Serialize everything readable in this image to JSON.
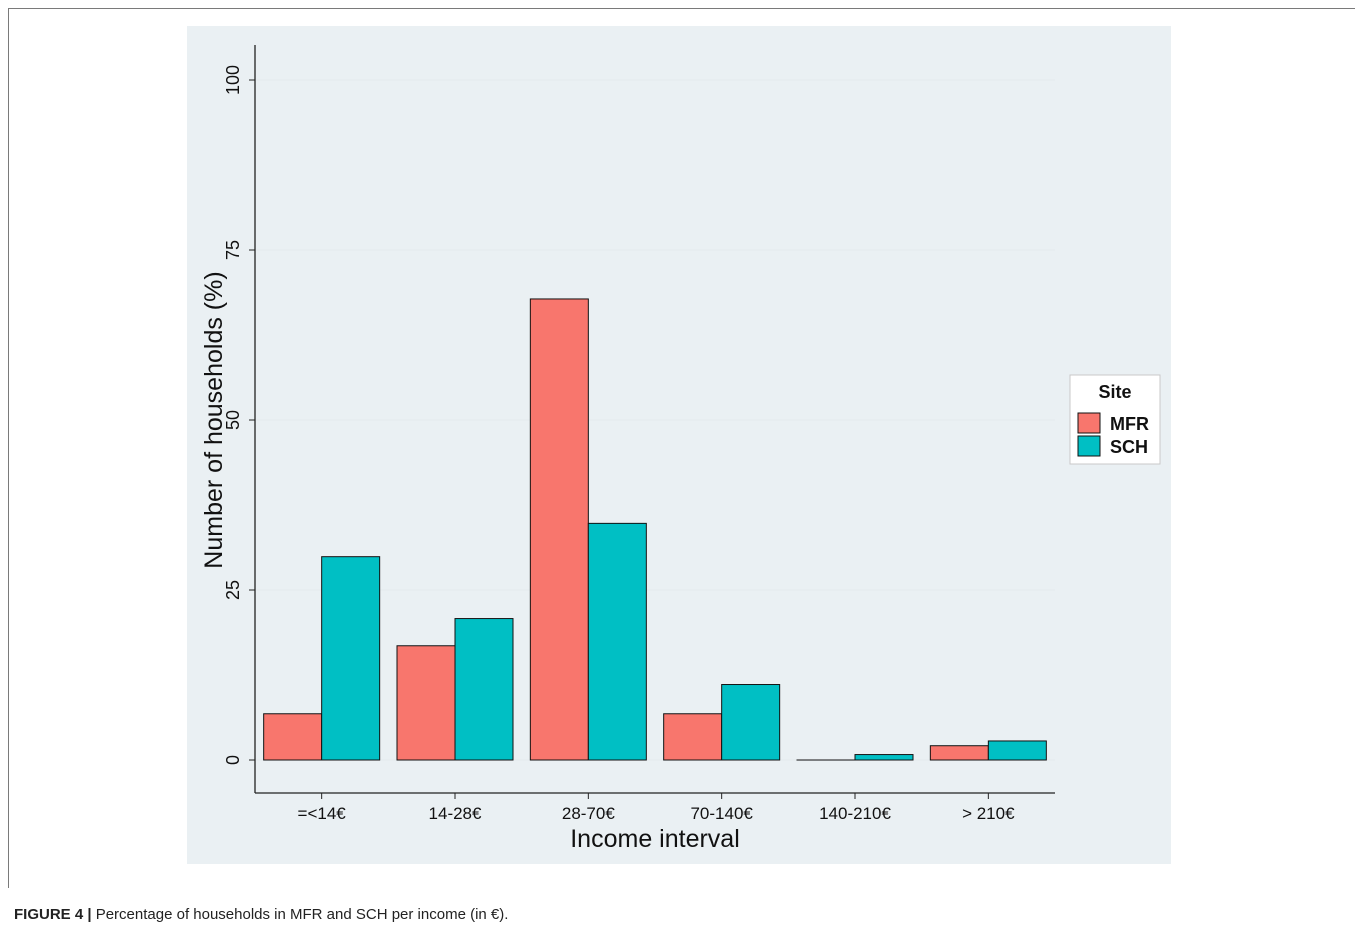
{
  "caption": {
    "label": "FIGURE 4 |",
    "text": " Percentage of households in MFR and SCH per income (in €)."
  },
  "chart_data": {
    "type": "bar",
    "xlabel": "Income interval",
    "ylabel": "Number of households (%)",
    "categories": [
      "=<14€",
      "14-28€",
      "28-70€",
      "70-140€",
      "140-210€",
      "> 210€"
    ],
    "series": [
      {
        "name": "MFR",
        "color": "#f8766d",
        "values": [
          6.8,
          16.8,
          67.8,
          6.8,
          0.0,
          2.1
        ]
      },
      {
        "name": "SCH",
        "color": "#00bfc4",
        "values": [
          29.9,
          20.8,
          34.8,
          11.1,
          0.8,
          2.8
        ]
      }
    ],
    "ylim": [
      0,
      100
    ],
    "yticks": [
      0,
      25,
      50,
      75,
      100
    ],
    "grid": true,
    "legend": {
      "title": "Site",
      "position": "right"
    }
  }
}
